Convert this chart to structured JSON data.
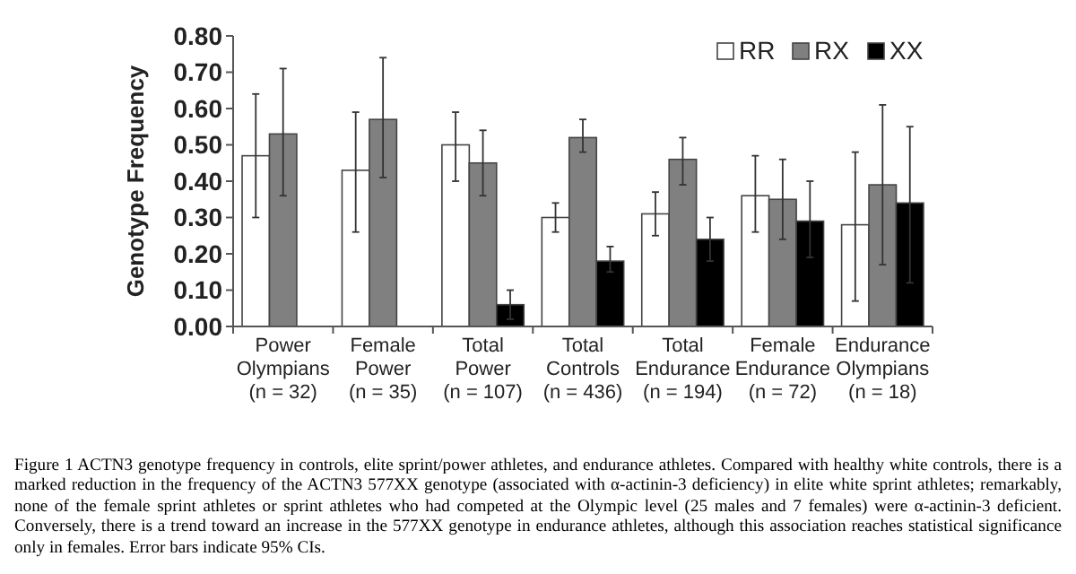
{
  "chart_data": {
    "type": "bar",
    "ylabel": "Genotype Frequency",
    "categories": [
      "Power\nOlympians\n(n = 32)",
      "Female\nPower\n(n = 35)",
      "Total\nPower\n(n = 107)",
      "Total\nControls\n(n = 436)",
      "Total\nEndurance\n(n = 194)",
      "Female\nEndurance\n(n = 72)",
      "Endurance\nOlympians\n(n = 18)"
    ],
    "series": [
      {
        "name": "RR",
        "color": "#ffffff",
        "values": [
          0.47,
          0.43,
          0.5,
          0.3,
          0.31,
          0.36,
          0.28
        ],
        "errors": [
          [
            0.3,
            0.64
          ],
          [
            0.26,
            0.59
          ],
          [
            0.4,
            0.59
          ],
          [
            0.26,
            0.34
          ],
          [
            0.25,
            0.37
          ],
          [
            0.26,
            0.47
          ],
          [
            0.07,
            0.48
          ]
        ]
      },
      {
        "name": "RX",
        "color": "#808080",
        "values": [
          0.53,
          0.57,
          0.45,
          0.52,
          0.46,
          0.35,
          0.39
        ],
        "errors": [
          [
            0.36,
            0.71
          ],
          [
            0.41,
            0.74
          ],
          [
            0.36,
            0.54
          ],
          [
            0.48,
            0.57
          ],
          [
            0.39,
            0.52
          ],
          [
            0.24,
            0.46
          ],
          [
            0.17,
            0.61
          ]
        ]
      },
      {
        "name": "XX",
        "color": "#000000",
        "values": [
          0,
          0,
          0.06,
          0.18,
          0.24,
          0.29,
          0.34
        ],
        "errors": [
          null,
          null,
          [
            0.02,
            0.1
          ],
          [
            0.15,
            0.22
          ],
          [
            0.18,
            0.3
          ],
          [
            0.19,
            0.4
          ],
          [
            0.12,
            0.55
          ]
        ]
      }
    ],
    "ylim": [
      0,
      0.8
    ],
    "yticks": [
      {
        "value": 0,
        "label": "0.00"
      },
      {
        "value": 0.1,
        "label": "0.10"
      },
      {
        "value": 0.2,
        "label": "0.20"
      },
      {
        "value": 0.3,
        "label": "0.30"
      },
      {
        "value": 0.4,
        "label": "0.40"
      },
      {
        "value": 0.5,
        "label": "0.50"
      },
      {
        "value": 0.6,
        "label": "0.60"
      },
      {
        "value": 0.7,
        "label": "0.70"
      },
      {
        "value": 0.8,
        "label": "0.80"
      }
    ],
    "grid": false,
    "legend": "top right",
    "annotations": [
      "Figure 1    ACTN3 genotype frequency in controls, elite sprint/power athletes, and endurance athletes. Compared with healthy white controls, there is a marked reduction in the frequency of the ACTN3 577XX genotype (associated with α-actinin-3 deficiency) in elite white sprint athletes; remarkably, none of the female sprint athletes or sprint athletes who had competed at the Olympic level (25 males and 7 females) were α-actinin-3 deficient. Conversely, there is a trend toward an increase in the 577XX genotype in endurance athletes, although this association reaches statistical significance only in females. Error bars indicate 95% CIs."
    ]
  }
}
